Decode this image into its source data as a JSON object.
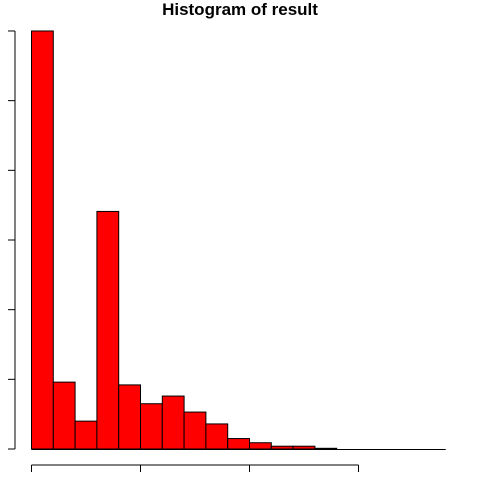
{
  "chart_data": {
    "type": "bar",
    "title": "Histogram of result",
    "xlabel": "",
    "ylabel": "",
    "bar_fill": "#ff0000",
    "bar_stroke": "#000000",
    "bins": [
      {
        "start": 0.0,
        "end": 0.1,
        "count": 600
      },
      {
        "start": 0.1,
        "end": 0.2,
        "count": 96
      },
      {
        "start": 0.2,
        "end": 0.3,
        "count": 40
      },
      {
        "start": 0.3,
        "end": 0.4,
        "count": 341
      },
      {
        "start": 0.4,
        "end": 0.5,
        "count": 92
      },
      {
        "start": 0.5,
        "end": 0.6,
        "count": 65
      },
      {
        "start": 0.6,
        "end": 0.7,
        "count": 76
      },
      {
        "start": 0.7,
        "end": 0.8,
        "count": 53
      },
      {
        "start": 0.8,
        "end": 0.9,
        "count": 36
      },
      {
        "start": 0.9,
        "end": 1.0,
        "count": 15
      },
      {
        "start": 1.0,
        "end": 1.1,
        "count": 9
      },
      {
        "start": 1.1,
        "end": 1.2,
        "count": 4
      },
      {
        "start": 1.2,
        "end": 1.3,
        "count": 4
      },
      {
        "start": 1.3,
        "end": 1.4,
        "count": 1
      }
    ],
    "xlim": [
      0.0,
      1.9
    ],
    "ylim": [
      0,
      600
    ],
    "x_ticks": [
      0.0,
      0.5,
      1.0,
      1.5
    ],
    "y_ticks": [
      0,
      100,
      200,
      300,
      400,
      500,
      600
    ],
    "tick_labels_visible": false,
    "grid": false
  }
}
